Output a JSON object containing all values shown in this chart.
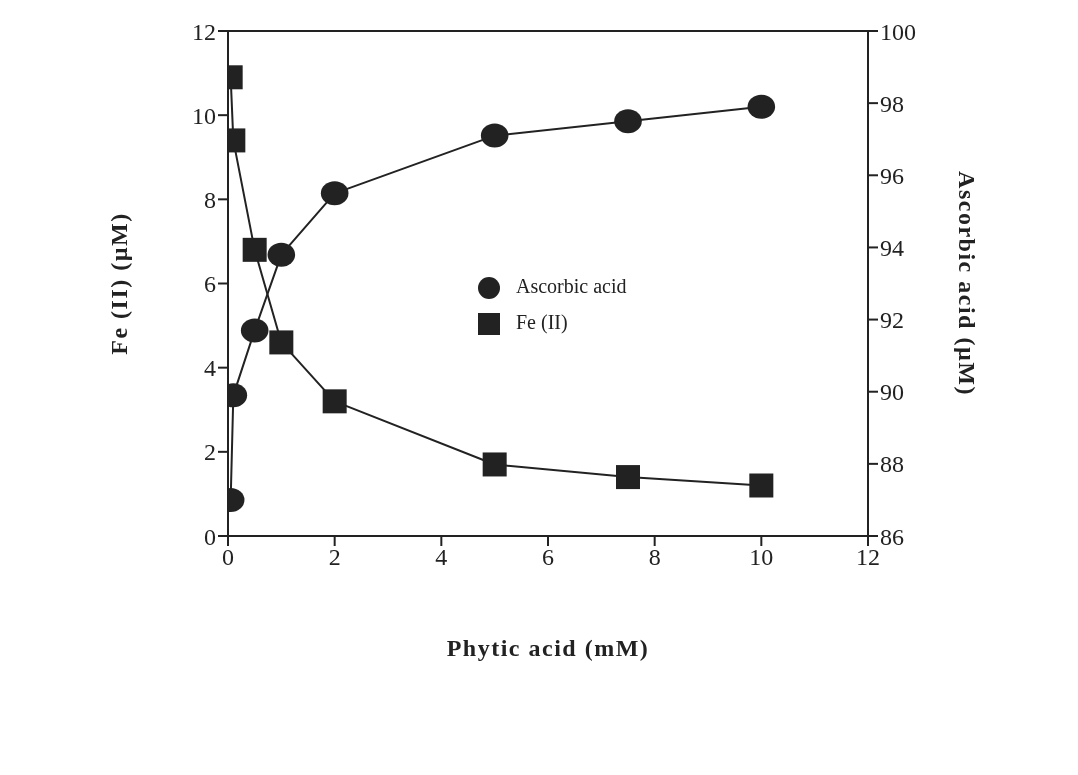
{
  "chart_data": {
    "type": "line",
    "xlabel": "Phytic acid (mM)",
    "ylabel": "Fe (II) (µM)",
    "y2label": "Ascorbic acid (µM)",
    "series": [
      {
        "name": "Fe (II)",
        "color": "#222222",
        "marker": "square",
        "x": [
          0.05,
          0.1,
          0.5,
          1,
          2,
          5,
          7.5,
          10
        ],
        "values": [
          10.9,
          9.4,
          6.8,
          4.6,
          3.2,
          1.7,
          1.4,
          1.2
        ]
      },
      {
        "name": "Ascorbic acid",
        "color": "#222222",
        "marker": "circle",
        "axis": "y2",
        "x": [
          0.05,
          0.1,
          0.5,
          1,
          2,
          5,
          7.5,
          10
        ],
        "values": [
          87.0,
          89.9,
          91.7,
          93.8,
          95.5,
          97.1,
          97.5,
          97.9
        ]
      }
    ],
    "xlim": [
      0,
      12
    ],
    "xticks": [
      0,
      2,
      4,
      6,
      8,
      10,
      12
    ],
    "ylim": [
      0,
      12
    ],
    "yticks": [
      0,
      2,
      4,
      6,
      8,
      10,
      12
    ],
    "y2lim": [
      86,
      100
    ],
    "y2ticks": [
      86,
      88,
      90,
      92,
      94,
      96,
      98,
      100
    ],
    "legend": "center",
    "line_style": "solid"
  }
}
